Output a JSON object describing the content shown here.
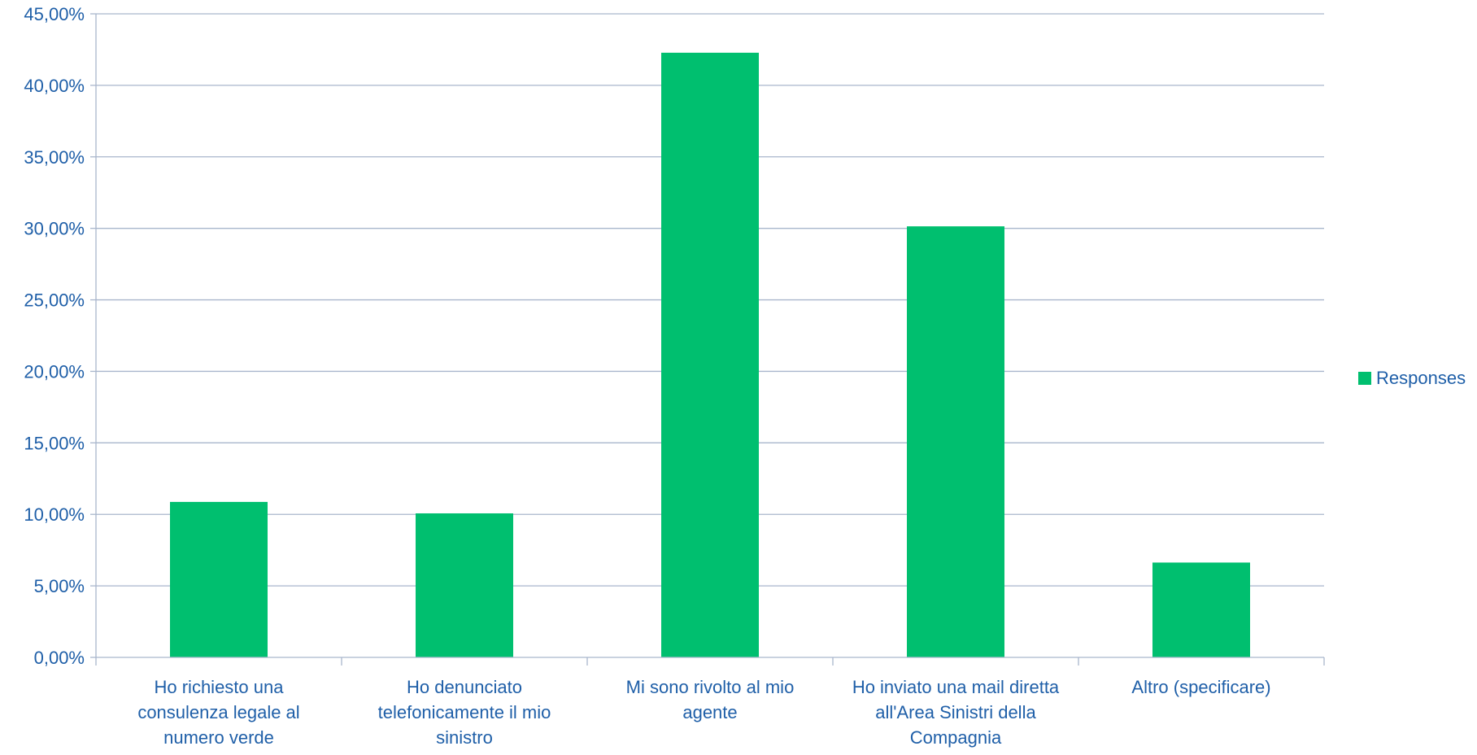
{
  "chart_data": {
    "type": "bar",
    "title": "",
    "xlabel": "",
    "ylabel": "",
    "categories": [
      "Ho richiesto una consulenza legale al numero verde",
      "Ho denunciato telefonicamente il mio sinistro",
      "Mi sono rivolto al mio agente",
      "Ho inviato una mail diretta all'Area Sinistri della Compagnia",
      "Altro (specificare)"
    ],
    "category_lines": [
      [
        "Ho richiesto una",
        "consulenza legale al",
        "numero verde"
      ],
      [
        "Ho denunciato",
        "telefonicamente il mio",
        "sinistro"
      ],
      [
        "Mi sono rivolto al mio",
        "agente"
      ],
      [
        "Ho inviato una mail diretta",
        "all'Area Sinistri della",
        "Compagnia"
      ],
      [
        "Altro (specificare)"
      ]
    ],
    "series": [
      {
        "name": "Responses",
        "color": "#00bf6f",
        "values": [
          10.87,
          10.07,
          42.28,
          30.14,
          6.63
        ]
      }
    ],
    "ylim": [
      0,
      45
    ],
    "y_ticks": [
      0,
      5,
      10,
      15,
      20,
      25,
      30,
      35,
      40,
      45
    ],
    "y_tick_labels": [
      "0,00%",
      "5,00%",
      "10,00%",
      "15,00%",
      "20,00%",
      "25,00%",
      "30,00%",
      "35,00%",
      "40,00%",
      "45,00%"
    ],
    "grid": true,
    "legend": {
      "position": "right",
      "entries": [
        "Responses"
      ]
    },
    "colors": {
      "bar": "#00bf6f",
      "text": "#1f5fa8",
      "grid": "#a9b6cc"
    }
  }
}
